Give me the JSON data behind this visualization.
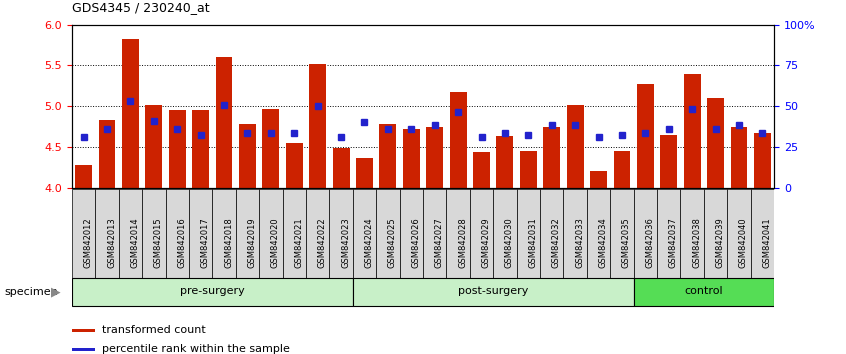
{
  "title": "GDS4345 / 230240_at",
  "categories": [
    "GSM842012",
    "GSM842013",
    "GSM842014",
    "GSM842015",
    "GSM842016",
    "GSM842017",
    "GSM842018",
    "GSM842019",
    "GSM842020",
    "GSM842021",
    "GSM842022",
    "GSM842023",
    "GSM842024",
    "GSM842025",
    "GSM842026",
    "GSM842027",
    "GSM842028",
    "GSM842029",
    "GSM842030",
    "GSM842031",
    "GSM842032",
    "GSM842033",
    "GSM842034",
    "GSM842035",
    "GSM842036",
    "GSM842037",
    "GSM842038",
    "GSM842039",
    "GSM842040",
    "GSM842041"
  ],
  "red_values": [
    4.28,
    4.83,
    5.82,
    5.02,
    4.95,
    4.95,
    5.6,
    4.78,
    4.96,
    4.55,
    5.52,
    4.49,
    4.36,
    4.78,
    4.72,
    4.75,
    5.17,
    4.44,
    4.63,
    4.45,
    4.75,
    5.01,
    4.21,
    4.45,
    5.27,
    4.65,
    5.4,
    5.1,
    4.75,
    4.67
  ],
  "blue_values": [
    4.62,
    4.72,
    5.07,
    4.82,
    4.72,
    4.65,
    5.02,
    4.67,
    4.67,
    4.67,
    5.0,
    4.62,
    4.8,
    4.72,
    4.72,
    4.77,
    4.93,
    4.62,
    4.67,
    4.65,
    4.77,
    4.77,
    4.62,
    4.65,
    4.67,
    4.72,
    4.97,
    4.72,
    4.77,
    4.67
  ],
  "groups": [
    {
      "label": "pre-surgery",
      "start": 0,
      "end": 11
    },
    {
      "label": "post-surgery",
      "start": 12,
      "end": 23
    },
    {
      "label": "control",
      "start": 24,
      "end": 29
    }
  ],
  "group_colors": [
    "#c8f0c8",
    "#c8f0c8",
    "#55dd55"
  ],
  "ylim": [
    4.0,
    6.0
  ],
  "yticks_left": [
    4.0,
    4.5,
    5.0,
    5.5,
    6.0
  ],
  "yticks_right_pct": [
    0,
    25,
    50,
    75,
    100
  ],
  "grid_values": [
    4.5,
    5.0,
    5.5
  ],
  "bar_color": "#CC2200",
  "dot_color": "#2222CC",
  "bar_bottom": 4.0,
  "legend_items": [
    "transformed count",
    "percentile rank within the sample"
  ],
  "legend_colors": [
    "#CC2200",
    "#2222CC"
  ]
}
